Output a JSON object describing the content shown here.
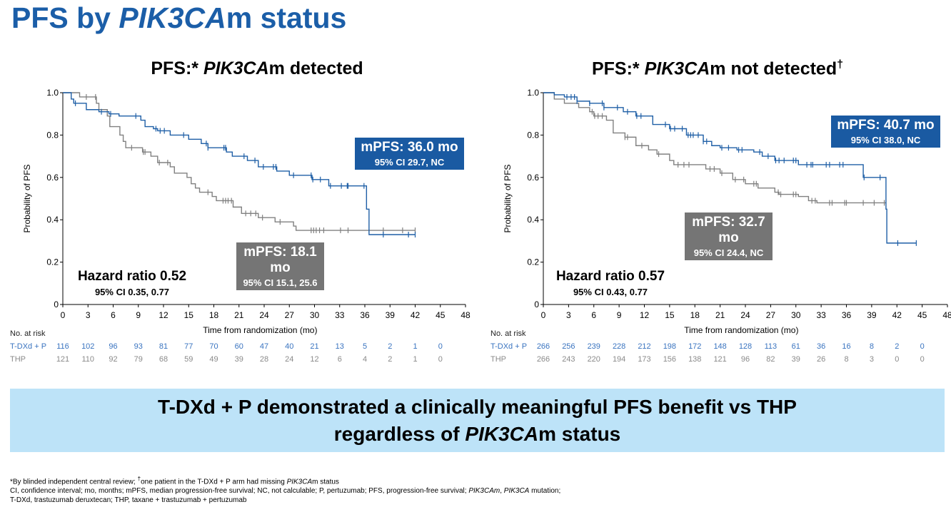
{
  "title": {
    "pre": "PFS by ",
    "italic": "PIK3CA",
    "post": "m status"
  },
  "banner": {
    "line1": "T-DXd + P demonstrated a clinically meaningful PFS benefit vs THP",
    "line2_pre": "regardless of ",
    "line2_italic": "PIK3CA",
    "line2_post": "m status"
  },
  "footnotes": {
    "line1_pre": "*By blinded independent central review; ",
    "dagger": "†",
    "line1_mid": "one patient in the T-DXd + P arm had missing ",
    "line1_italic": "PIK3CA",
    "line1_post": "m status",
    "line2_pre": "CI, confidence interval; mo, months; mPFS, median progression-free survival; NC, not calculable; P, pertuzumab; PFS, progression-free survival; ",
    "line2_i1": "PIK3CAm",
    "line2_mid": ", ",
    "line2_i2": "PIK3CA",
    "line2_post": " mutation;",
    "line3": "T-DXd, trastuzumab deruxtecan; THP, taxane + trastuzumab + pertuzumab"
  },
  "colors": {
    "tdxd": "#1f5fa6",
    "thp": "#808080",
    "tdxd_text": "#3a74c0",
    "thp_text": "#8a8a8a"
  },
  "chart_data": [
    {
      "type": "line",
      "title_pre": "PFS:* ",
      "title_italic": "PIK3CA",
      "title_post": "m detected",
      "title_sup": "",
      "xlabel": "Time from randomization (mo)",
      "ylabel": "Probability of PFS",
      "xlim": [
        0,
        48
      ],
      "ylim": [
        0,
        1
      ],
      "xticks": [
        0,
        3,
        6,
        9,
        12,
        15,
        18,
        21,
        24,
        27,
        30,
        33,
        36,
        39,
        42,
        45,
        48
      ],
      "yticks": [
        {
          "v": 0,
          "label": "0"
        },
        {
          "v": 0.2,
          "label": "0.2"
        },
        {
          "v": 0.4,
          "label": "0.4"
        },
        {
          "v": 0.6,
          "label": "0.6"
        },
        {
          "v": 0.8,
          "label": "0.8"
        },
        {
          "v": 1,
          "label": "1.0"
        }
      ],
      "series": [
        {
          "name": "T-DXd + P",
          "color_key": "tdxd",
          "end": 42,
          "steps": [
            [
              0,
              1
            ],
            [
              1,
              0.97
            ],
            [
              1.3,
              0.95
            ],
            [
              2.8,
              0.92
            ],
            [
              4.3,
              0.91
            ],
            [
              5.5,
              0.9
            ],
            [
              6.7,
              0.89
            ],
            [
              9.3,
              0.87
            ],
            [
              9.8,
              0.84
            ],
            [
              10.8,
              0.83
            ],
            [
              11.3,
              0.82
            ],
            [
              12.8,
              0.8
            ],
            [
              15,
              0.78
            ],
            [
              16.5,
              0.76
            ],
            [
              17.3,
              0.74
            ],
            [
              19.5,
              0.72
            ],
            [
              20.2,
              0.7
            ],
            [
              22,
              0.68
            ],
            [
              23.3,
              0.65
            ],
            [
              25.5,
              0.63
            ],
            [
              27,
              0.61
            ],
            [
              29.7,
              0.59
            ],
            [
              31.7,
              0.56
            ],
            [
              36.2,
              0.45
            ],
            [
              36.5,
              0.33
            ]
          ],
          "censored": [
            1.5,
            4.6,
            5.7,
            8.7,
            11.1,
            11.6,
            12.1,
            14.4,
            17.1,
            17.3,
            19.2,
            19.4,
            21.6,
            22.9,
            23.9,
            25.1,
            25.4,
            27.5,
            29.6,
            29.8,
            30.7,
            31.9,
            33.2,
            33.9,
            34,
            35.9,
            38.2,
            41.2,
            42
          ]
        },
        {
          "name": "THP",
          "color_key": "thp",
          "end": 42,
          "steps": [
            [
              0,
              1
            ],
            [
              2,
              0.98
            ],
            [
              4,
              0.95
            ],
            [
              4.3,
              0.92
            ],
            [
              5.3,
              0.89
            ],
            [
              5.6,
              0.84
            ],
            [
              6.8,
              0.8
            ],
            [
              7.2,
              0.77
            ],
            [
              7.5,
              0.74
            ],
            [
              9.5,
              0.72
            ],
            [
              10.5,
              0.7
            ],
            [
              11.3,
              0.67
            ],
            [
              12.8,
              0.65
            ],
            [
              13.3,
              0.62
            ],
            [
              14.8,
              0.6
            ],
            [
              15.3,
              0.57
            ],
            [
              15.8,
              0.55
            ],
            [
              16.3,
              0.53
            ],
            [
              17.8,
              0.51
            ],
            [
              18.3,
              0.49
            ],
            [
              20.3,
              0.46
            ],
            [
              21.3,
              0.43
            ],
            [
              23.3,
              0.41
            ],
            [
              25.3,
              0.39
            ],
            [
              27.5,
              0.37
            ],
            [
              27.8,
              0.35
            ]
          ],
          "censored": [
            2.8,
            3.9,
            8.2,
            9.6,
            9.8,
            11.5,
            12.5,
            17.3,
            19.1,
            19.4,
            19.7,
            20.1,
            21.8,
            22.4,
            23,
            23.8,
            25.9,
            29.6,
            29.9,
            30.2,
            30.6,
            31.1,
            33.1,
            34,
            38.2,
            40.5,
            42
          ]
        }
      ],
      "annotations": {
        "tdxd_median": "mPFS: 36.0 mo",
        "tdxd_ci": "95% CI 29.7, NC",
        "thp_median": "mPFS: 18.1 mo",
        "thp_ci": "95% CI 15.1, 25.6",
        "hr": "Hazard ratio 0.52",
        "hr_ci": "95% CI 0.35, 0.77"
      },
      "risk_table": {
        "header": "No. at risk",
        "rows": [
          {
            "label": "T-DXd + P",
            "color_key": "tdxd_text",
            "values": [
              116,
              102,
              96,
              93,
              81,
              77,
              70,
              60,
              47,
              40,
              21,
              13,
              5,
              2,
              1,
              0
            ]
          },
          {
            "label": "THP",
            "color_key": "thp_text",
            "values": [
              121,
              110,
              92,
              79,
              68,
              59,
              49,
              39,
              28,
              24,
              12,
              6,
              4,
              2,
              1,
              0
            ]
          }
        ]
      }
    },
    {
      "type": "line",
      "title_pre": "PFS:* ",
      "title_italic": "PIK3CA",
      "title_post": "m not detected",
      "title_sup": "†",
      "xlabel": "Time from randomization (mo)",
      "ylabel": "Probability of PFS",
      "xlim": [
        0,
        48
      ],
      "ylim": [
        0,
        1
      ],
      "xticks": [
        0,
        3,
        6,
        9,
        12,
        15,
        18,
        21,
        24,
        27,
        30,
        33,
        36,
        39,
        42,
        45,
        48
      ],
      "yticks": [
        {
          "v": 0,
          "label": "0"
        },
        {
          "v": 0.2,
          "label": "0.2"
        },
        {
          "v": 0.4,
          "label": "0.4"
        },
        {
          "v": 0.6,
          "label": "0.6"
        },
        {
          "v": 0.8,
          "label": "0.8"
        },
        {
          "v": 1,
          "label": "1.0"
        }
      ],
      "series": [
        {
          "name": "T-DXd + P",
          "color_key": "tdxd",
          "end": 44.3,
          "steps": [
            [
              0,
              1
            ],
            [
              1.3,
              0.99
            ],
            [
              2.5,
              0.98
            ],
            [
              4,
              0.96
            ],
            [
              5.5,
              0.95
            ],
            [
              7.2,
              0.93
            ],
            [
              9.5,
              0.91
            ],
            [
              11,
              0.89
            ],
            [
              13,
              0.85
            ],
            [
              15,
              0.83
            ],
            [
              17,
              0.8
            ],
            [
              19,
              0.77
            ],
            [
              20,
              0.75
            ],
            [
              21,
              0.74
            ],
            [
              23,
              0.73
            ],
            [
              25,
              0.72
            ],
            [
              26,
              0.7
            ],
            [
              27.5,
              0.68
            ],
            [
              30.3,
              0.66
            ],
            [
              38,
              0.6
            ],
            [
              40.7,
              0.45
            ],
            [
              40.8,
              0.29
            ]
          ],
          "censored": [
            2.8,
            3.3,
            3.7,
            4,
            5.5,
            7,
            7.2,
            8.8,
            10,
            11.1,
            11.6,
            14.5,
            15.1,
            15.6,
            16.5,
            17.2,
            17.5,
            17.8,
            18.4,
            19,
            19.4,
            21.2,
            22,
            23.2,
            23.6,
            25.7,
            26.7,
            27.6,
            28,
            28.6,
            29.7,
            30,
            31.3,
            31.8,
            32,
            33.6,
            34,
            35.2,
            35.6,
            38.1,
            40,
            42.1,
            44.3
          ]
        },
        {
          "name": "THP",
          "color_key": "thp",
          "end": 40.7,
          "steps": [
            [
              0,
              1
            ],
            [
              1.3,
              0.97
            ],
            [
              2.5,
              0.95
            ],
            [
              4.2,
              0.93
            ],
            [
              5.5,
              0.91
            ],
            [
              6,
              0.89
            ],
            [
              7.5,
              0.87
            ],
            [
              8.3,
              0.81
            ],
            [
              9.7,
              0.79
            ],
            [
              11,
              0.75
            ],
            [
              12.5,
              0.73
            ],
            [
              13.5,
              0.71
            ],
            [
              15,
              0.68
            ],
            [
              15.5,
              0.66
            ],
            [
              19.3,
              0.64
            ],
            [
              21,
              0.62
            ],
            [
              22.5,
              0.59
            ],
            [
              24,
              0.57
            ],
            [
              25.5,
              0.55
            ],
            [
              27.5,
              0.53
            ],
            [
              28,
              0.52
            ],
            [
              30.3,
              0.51
            ],
            [
              31.5,
              0.49
            ],
            [
              32.5,
              0.48
            ]
          ],
          "censored": [
            5.8,
            6.1,
            6.5,
            7,
            9.7,
            10,
            11.7,
            13.7,
            16,
            16.7,
            17.3,
            19.8,
            20.3,
            21.2,
            22.8,
            23.8,
            25,
            25.3,
            27.9,
            28.2,
            29.7,
            30,
            31.9,
            32.3,
            34,
            34.3,
            35.8,
            36,
            38,
            39.3,
            40.5
          ]
        }
      ],
      "annotations": {
        "tdxd_median": "mPFS: 40.7 mo",
        "tdxd_ci": "95% CI 38.0, NC",
        "thp_median": "mPFS: 32.7 mo",
        "thp_ci": "95% CI 24.4, NC",
        "hr": "Hazard ratio 0.57",
        "hr_ci": "95% CI 0.43, 0.77"
      },
      "risk_table": {
        "header": "No. at risk",
        "rows": [
          {
            "label": "T-DXd + P",
            "color_key": "tdxd_text",
            "values": [
              266,
              256,
              239,
              228,
              212,
              198,
              172,
              148,
              128,
              113,
              61,
              36,
              16,
              8,
              2,
              0
            ]
          },
          {
            "label": "THP",
            "color_key": "thp_text",
            "values": [
              266,
              243,
              220,
              194,
              173,
              156,
              138,
              121,
              96,
              82,
              39,
              26,
              8,
              3,
              0,
              0
            ]
          }
        ]
      }
    }
  ]
}
